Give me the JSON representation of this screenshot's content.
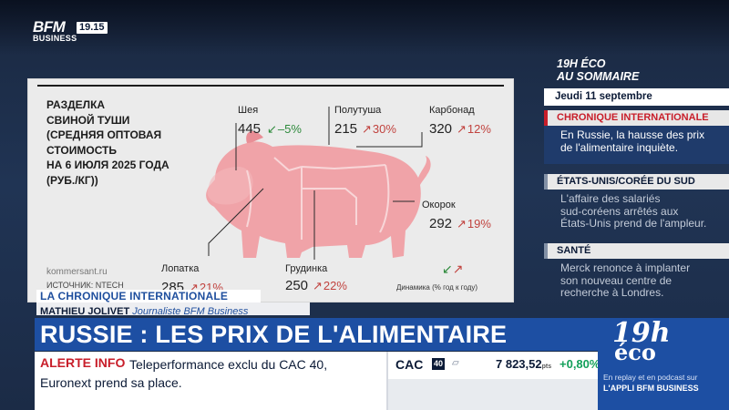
{
  "channel": {
    "logo_top": "BFM",
    "logo_bottom": "BUSINESS",
    "clock": "19.15"
  },
  "infographic": {
    "title": "РАЗДЕЛКА\nСВИНОЙ ТУШИ\n(СРЕДНЯЯ ОПТОВАЯ\nСТОИМОСТЬ\nНА 6 ИЮЛЯ 2025 ГОДА\n(РУБ./КГ))",
    "cuts": [
      {
        "name": "Шея",
        "price": "445",
        "change": "–5%",
        "direction": "down"
      },
      {
        "name": "Полутуша",
        "price": "215",
        "change": "30%",
        "direction": "up"
      },
      {
        "name": "Карбонад",
        "price": "320",
        "change": "12%",
        "direction": "up"
      },
      {
        "name": "Окорок",
        "price": "292",
        "change": "19%",
        "direction": "up"
      },
      {
        "name": "Лопатка",
        "price": "285",
        "change": "21%",
        "direction": "up"
      },
      {
        "name": "Грудинка",
        "price": "250",
        "change": "22%",
        "direction": "up"
      }
    ],
    "source_site": "kommersant.ru",
    "source_note": "ИСТОЧНИК: NTECH",
    "legend": "Динамика (% год к году)",
    "colors": {
      "pig": "#f0a3a8",
      "pig_dark": "#e98e96",
      "up": "#c1433f",
      "down": "#2e8a3c"
    }
  },
  "sidebar": {
    "header_line1": "19H ÉCO",
    "header_line2": "AU SOMMAIRE",
    "date": "Jeudi 11 septembre",
    "items": [
      {
        "tag": "CHRONIQUE INTERNATIONALE",
        "text": "En Russie, la hausse des prix\nde l'alimentaire inquiète.",
        "active": true
      },
      {
        "tag": "ÉTATS-UNIS/CORÉE DU SUD",
        "text": "L'affaire des salariés\nsud-coréens arrêtés aux\nÉtats-Unis prend de l'ampleur.",
        "active": false
      },
      {
        "tag": "SANTÉ",
        "text": "Merck renonce à implanter\nson nouveau centre de\nrecherche à Londres.",
        "active": false
      }
    ]
  },
  "lower_third": {
    "segment": "LA CHRONIQUE INTERNATIONALE",
    "author_name": "MATHIEU JOLIVET",
    "author_role": "Journaliste BFM Business",
    "headline": "RUSSIE : LES PRIX DE L'ALIMENTAIRE S'ENVOLENT"
  },
  "alert": {
    "label": "ALERTE INFO",
    "text": "Teleperformance exclu du CAC 40, Euronext prend sa place."
  },
  "ticker": {
    "index": "CAC",
    "badge": "40",
    "value": "7 823,52",
    "unit": "pts",
    "change": "+0,80%",
    "color_up": "#13a05a"
  },
  "promo": {
    "big": "19h",
    "big2": "éco",
    "line1": "En replay et en podcast sur",
    "line2": "L'APPLI BFM BUSINESS"
  }
}
